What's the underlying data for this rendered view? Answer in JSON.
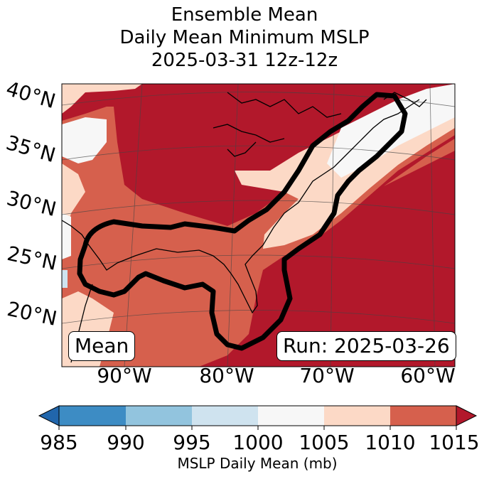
{
  "title": {
    "line1": "Ensemble Mean",
    "line2": "Daily Mean Minimum MSLP",
    "line3": "2025-03-31 12z-12z"
  },
  "map": {
    "lat_labels": [
      "40°N",
      "35°N",
      "30°N",
      "25°N",
      "20°N"
    ],
    "lon_labels": [
      "90°W",
      "80°W",
      "70°W",
      "60°W"
    ],
    "mean_label": "Mean",
    "run_label": "Run: 2025-03-26",
    "colors": {
      "c985": "#2b6fae",
      "c990": "#3d8cc4",
      "c995": "#92c4de",
      "c1000": "#cfe3ef",
      "c1005": "#f7f7f7",
      "c1010": "#fcd9c6",
      "c1015": "#d6604d",
      "c1015plus": "#b2182b"
    }
  },
  "colorbar": {
    "ticks": [
      "985",
      "990",
      "995",
      "1000",
      "1005",
      "1010",
      "1015"
    ],
    "label": "MSLP Daily Mean (mb)",
    "colors": [
      "#2166ac",
      "#3d8cc4",
      "#92c4de",
      "#cfe3ef",
      "#f7f7f7",
      "#fcd9c6",
      "#d6604d",
      "#b2182b"
    ]
  }
}
